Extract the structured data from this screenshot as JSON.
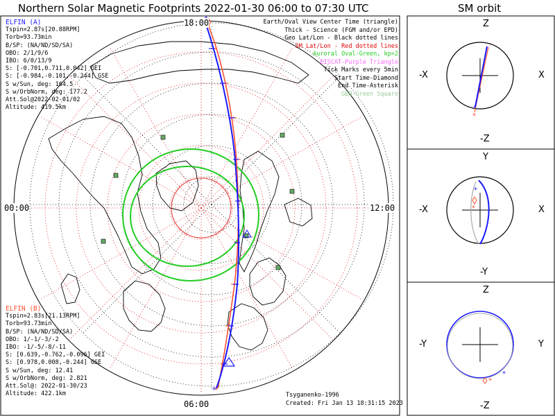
{
  "title": "Northern Solar Magnetic Footprints 2022-01-30 06:00 to 07:30 UTC",
  "orbit_title": "SM orbit",
  "time_labels": {
    "top": "18:00",
    "bottom": "06:00",
    "left": "00:00",
    "right": "12:00"
  },
  "elfin_a": {
    "name": "ELFIN (A)",
    "color": "#1a1aff",
    "lines": [
      "Tspin=2.87s[20.88RPM]",
      "Torb=93.73min",
      "B/SP: (NA/ND/SD/SA)",
      "OBO: 2/1/9/6",
      "IBO: 6/0/13/9",
      "S: [-0.701,0.711,0.042] GEI",
      "S: [-0.984,-0.101,-0.244] GSE",
      "S w/Sun, deg: 164.5",
      "S w/OrbNorm, deg: 177.2",
      "Att.Sol@2022-02-01/02",
      "Altitude: 419.5km"
    ]
  },
  "elfin_b": {
    "name": "ELFIN (B)",
    "color": "#ff5030",
    "lines": [
      "Tspin=2.83s[21.13RPM]",
      "Torb=93.73min",
      "B/SP: (NA/ND/SD/SA)",
      "OBO: 1/-1/-3/-2",
      "IBO: -1/-5/-8/-11",
      "S: [0.639,-0.762,-0.096] GEI",
      "S: [0.978,0.008,-0.244] GSE",
      "S w/Sun, deg: 12.41",
      "S w/OrbNorm, deg: 2.821",
      "Att.Sol@: 2022-01-30/23",
      "Altitude: 422.1km"
    ]
  },
  "legend": [
    {
      "text": "Earth/Oval View Center Time (triangle)",
      "color": "#000000"
    },
    {
      "text": "Thick - Science (FGM and/or EPD)",
      "color": "#000000"
    },
    {
      "text": "Geo Lat/Lon - Black dotted lines",
      "color": "#000000"
    },
    {
      "text": "SM Lat/Lon - Red dotted lines",
      "color": "#e00000"
    },
    {
      "text": "Auroral Oval-Green, kp=2",
      "color": "#22cc22"
    },
    {
      "text": "EISCAT-Purple Triangle",
      "color": "#ff66ff"
    },
    {
      "text": "Tick Marks every 5min",
      "color": "#000000"
    },
    {
      "text": "Start Time-Diamond",
      "color": "#000000"
    },
    {
      "text": "End Time-Asterisk",
      "color": "#000000"
    },
    {
      "text": "GBO-Green Square",
      "color": "#99cc99"
    }
  ],
  "credit": {
    "model": "Tsyganenko-1996",
    "created": "Created: Fri Jan 13 18:31:15 2023"
  },
  "orbit_panels": [
    {
      "top": "Z",
      "bottom": "-Z",
      "left": "-X",
      "right": "X"
    },
    {
      "top": "Y",
      "bottom": "-Y",
      "left": "-X",
      "right": "X"
    },
    {
      "top": "Z",
      "bottom": "-Z",
      "left": "-Y",
      "right": "Y"
    }
  ]
}
